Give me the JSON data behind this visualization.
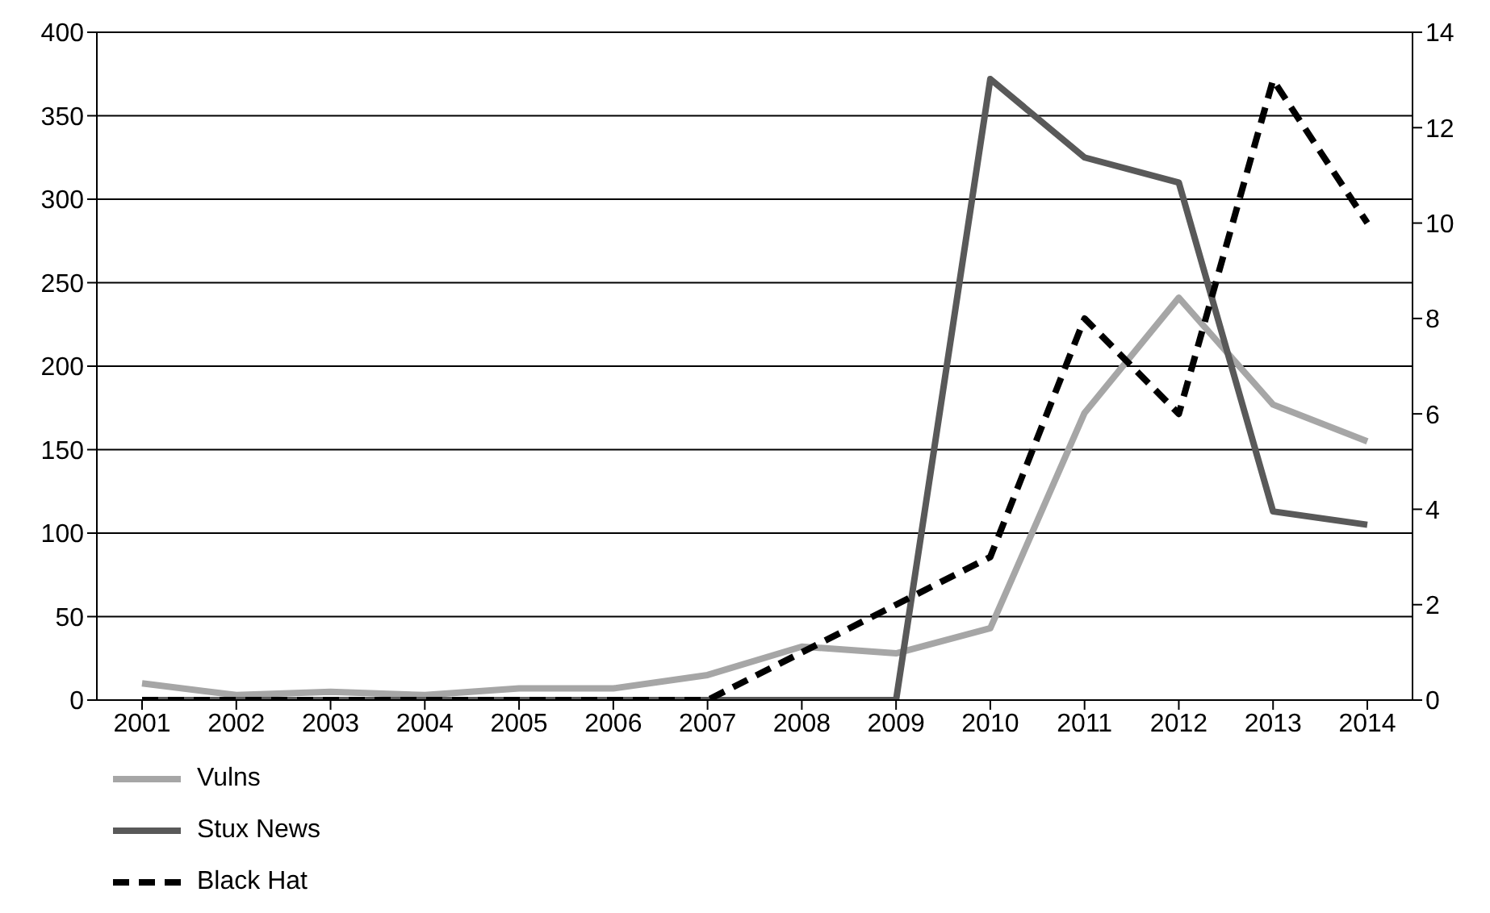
{
  "chart_data": {
    "type": "line",
    "categories": [
      "2001",
      "2002",
      "2003",
      "2004",
      "2005",
      "2006",
      "2007",
      "2008",
      "2009",
      "2010",
      "2011",
      "2012",
      "2013",
      "2014"
    ],
    "series": [
      {
        "name": "Vulns",
        "color": "#a6a6a6",
        "line_style": "solid",
        "values": [
          10,
          3,
          5,
          3,
          7,
          7,
          15,
          32,
          28,
          43,
          172,
          241,
          177,
          155
        ]
      },
      {
        "name": "Stux News",
        "color": "#595959",
        "line_style": "solid",
        "values": [
          0,
          0,
          0,
          0,
          0,
          0,
          0,
          0,
          0,
          372,
          325,
          310,
          113,
          105
        ]
      },
      {
        "name": "Black Hat",
        "color": "#000000",
        "line_style": "dashed",
        "axis": "y2",
        "values": [
          0,
          0,
          0,
          0,
          0,
          0,
          0,
          1,
          2,
          3,
          8,
          6,
          13,
          10
        ]
      }
    ],
    "ylim": [
      0,
      400
    ],
    "yticks": [
      0,
      50,
      100,
      150,
      200,
      250,
      300,
      350,
      400
    ],
    "y2lim": [
      0,
      14
    ],
    "y2ticks": [
      0,
      2,
      4,
      6,
      8,
      10,
      12,
      14
    ],
    "grid": "y",
    "legend": "bottom",
    "marker": "none"
  }
}
